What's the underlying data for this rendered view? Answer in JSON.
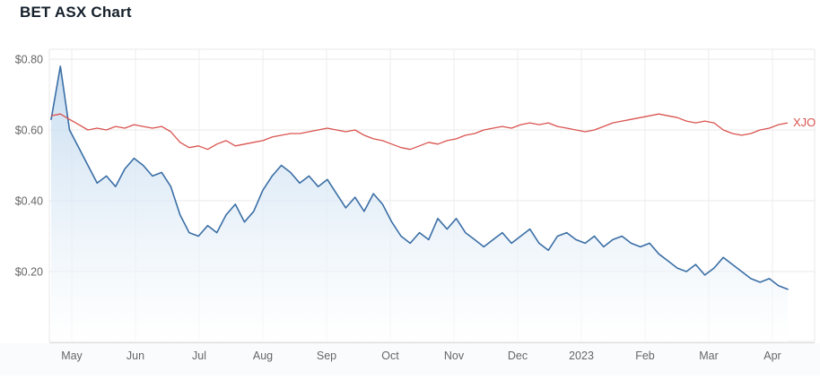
{
  "page": {
    "title": "BET ASX Chart"
  },
  "chart_data": {
    "type": "line",
    "title": "BET ASX Chart",
    "x_tick_labels": [
      "May",
      "Jun",
      "Jul",
      "Aug",
      "Sep",
      "Oct",
      "Nov",
      "Dec",
      "2023",
      "Feb",
      "Mar",
      "Apr"
    ],
    "y_ticks": [
      {
        "label": "$0.80",
        "value": 0.8
      },
      {
        "label": "$0.60",
        "value": 0.6
      },
      {
        "label": "$0.40",
        "value": 0.4
      },
      {
        "label": "$0.20",
        "value": 0.2
      }
    ],
    "ylim": [
      0,
      0.83
    ],
    "grid": true,
    "legend_position": "inline-end-label",
    "colors": {
      "bet_line": "#3a6ea5",
      "area_fill_top": "#b9d4ec",
      "area_fill_bottom": "#ffffff",
      "xjo_line": "#d9534f",
      "gridline": "#e8e8e8",
      "axis_text": "#666666",
      "axis_band": "#fafbfc",
      "axis_line": "#dcdcdc"
    },
    "series": [
      {
        "name": "BET",
        "type": "area",
        "color": "#3a6ea5",
        "fill": "gradient",
        "values": [
          0.63,
          0.78,
          0.6,
          0.55,
          0.5,
          0.45,
          0.47,
          0.44,
          0.49,
          0.52,
          0.5,
          0.47,
          0.48,
          0.44,
          0.36,
          0.31,
          0.3,
          0.33,
          0.31,
          0.36,
          0.39,
          0.34,
          0.37,
          0.43,
          0.47,
          0.5,
          0.48,
          0.45,
          0.47,
          0.44,
          0.46,
          0.42,
          0.38,
          0.41,
          0.37,
          0.42,
          0.39,
          0.34,
          0.3,
          0.28,
          0.31,
          0.29,
          0.35,
          0.32,
          0.35,
          0.31,
          0.29,
          0.27,
          0.29,
          0.31,
          0.28,
          0.3,
          0.32,
          0.28,
          0.26,
          0.3,
          0.31,
          0.29,
          0.28,
          0.3,
          0.27,
          0.29,
          0.3,
          0.28,
          0.27,
          0.28,
          0.25,
          0.23,
          0.21,
          0.2,
          0.22,
          0.19,
          0.21,
          0.24,
          0.22,
          0.2,
          0.18,
          0.17,
          0.18,
          0.16,
          0.15
        ]
      },
      {
        "name": "XJO",
        "type": "line",
        "color": "#d9534f",
        "end_label": "XJO",
        "values": [
          0.64,
          0.645,
          0.63,
          0.615,
          0.6,
          0.605,
          0.6,
          0.61,
          0.605,
          0.615,
          0.61,
          0.605,
          0.61,
          0.595,
          0.565,
          0.55,
          0.555,
          0.545,
          0.56,
          0.57,
          0.555,
          0.56,
          0.565,
          0.57,
          0.58,
          0.585,
          0.59,
          0.59,
          0.595,
          0.6,
          0.605,
          0.6,
          0.595,
          0.6,
          0.585,
          0.575,
          0.57,
          0.56,
          0.55,
          0.545,
          0.555,
          0.565,
          0.56,
          0.57,
          0.575,
          0.585,
          0.59,
          0.6,
          0.605,
          0.61,
          0.605,
          0.615,
          0.62,
          0.615,
          0.62,
          0.61,
          0.605,
          0.6,
          0.595,
          0.6,
          0.61,
          0.62,
          0.625,
          0.63,
          0.635,
          0.64,
          0.645,
          0.64,
          0.635,
          0.625,
          0.62,
          0.625,
          0.62,
          0.6,
          0.59,
          0.585,
          0.59,
          0.6,
          0.605,
          0.615,
          0.62
        ]
      }
    ]
  }
}
